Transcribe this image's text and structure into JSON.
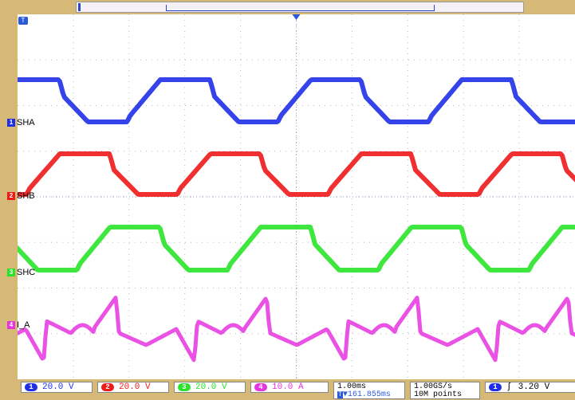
{
  "trigger_marker": "T",
  "channels": [
    {
      "id": "1",
      "name": "SHA",
      "color": "#1f2fe8",
      "scale": "20.0 V"
    },
    {
      "id": "2",
      "name": "SHB",
      "color": "#ee1a1a",
      "scale": "20.0 V"
    },
    {
      "id": "3",
      "name": "SHC",
      "color": "#28e428",
      "scale": "20.0 V"
    },
    {
      "id": "4",
      "name": "I_A",
      "color": "#e634e0",
      "scale": "10.0 A"
    }
  ],
  "timebase": {
    "scale": "1.00ms",
    "position": "▼161.855ms"
  },
  "acquisition": {
    "rate": "1.00GS/s",
    "record": "10M points"
  },
  "trigger": {
    "channel": "1",
    "slope": "ʃ",
    "level": "3.20 V"
  }
}
